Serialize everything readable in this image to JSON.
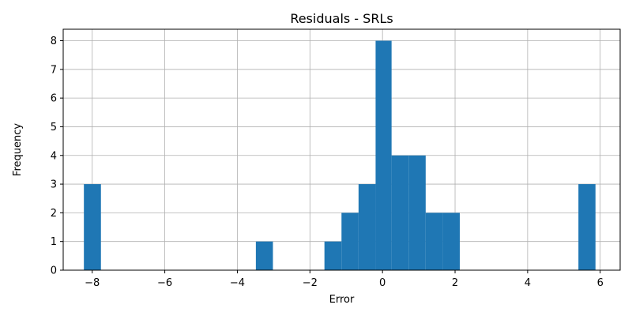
{
  "chart_data": {
    "type": "bar",
    "title": "Residuals - SRLs",
    "xlabel": "Error",
    "ylabel": "Frequency",
    "xlim": [
      -8.8,
      6.55
    ],
    "ylim": [
      0,
      8.4
    ],
    "xticks": [
      -8,
      -6,
      -4,
      -2,
      0,
      2,
      4,
      6
    ],
    "yticks": [
      0,
      1,
      2,
      3,
      4,
      5,
      6,
      7,
      8
    ],
    "xtick_labels": [
      "−8",
      "−6",
      "−4",
      "−2",
      "0",
      "2",
      "4",
      "6"
    ],
    "ytick_labels": [
      "0",
      "1",
      "2",
      "3",
      "4",
      "5",
      "6",
      "7",
      "8"
    ],
    "grid": true,
    "bar_color": "#1f77b4",
    "bins": [
      {
        "start": -8.23,
        "end": -7.76,
        "count": 3
      },
      {
        "start": -3.49,
        "end": -3.02,
        "count": 1
      },
      {
        "start": -1.6,
        "end": -1.13,
        "count": 1
      },
      {
        "start": -1.13,
        "end": -0.66,
        "count": 2
      },
      {
        "start": -0.66,
        "end": -0.19,
        "count": 3
      },
      {
        "start": -0.19,
        "end": 0.25,
        "count": 8
      },
      {
        "start": 0.25,
        "end": 0.72,
        "count": 4
      },
      {
        "start": 0.72,
        "end": 1.19,
        "count": 4
      },
      {
        "start": 1.19,
        "end": 1.66,
        "count": 2
      },
      {
        "start": 1.66,
        "end": 2.13,
        "count": 2
      },
      {
        "start": 5.4,
        "end": 5.87,
        "count": 3
      }
    ]
  }
}
